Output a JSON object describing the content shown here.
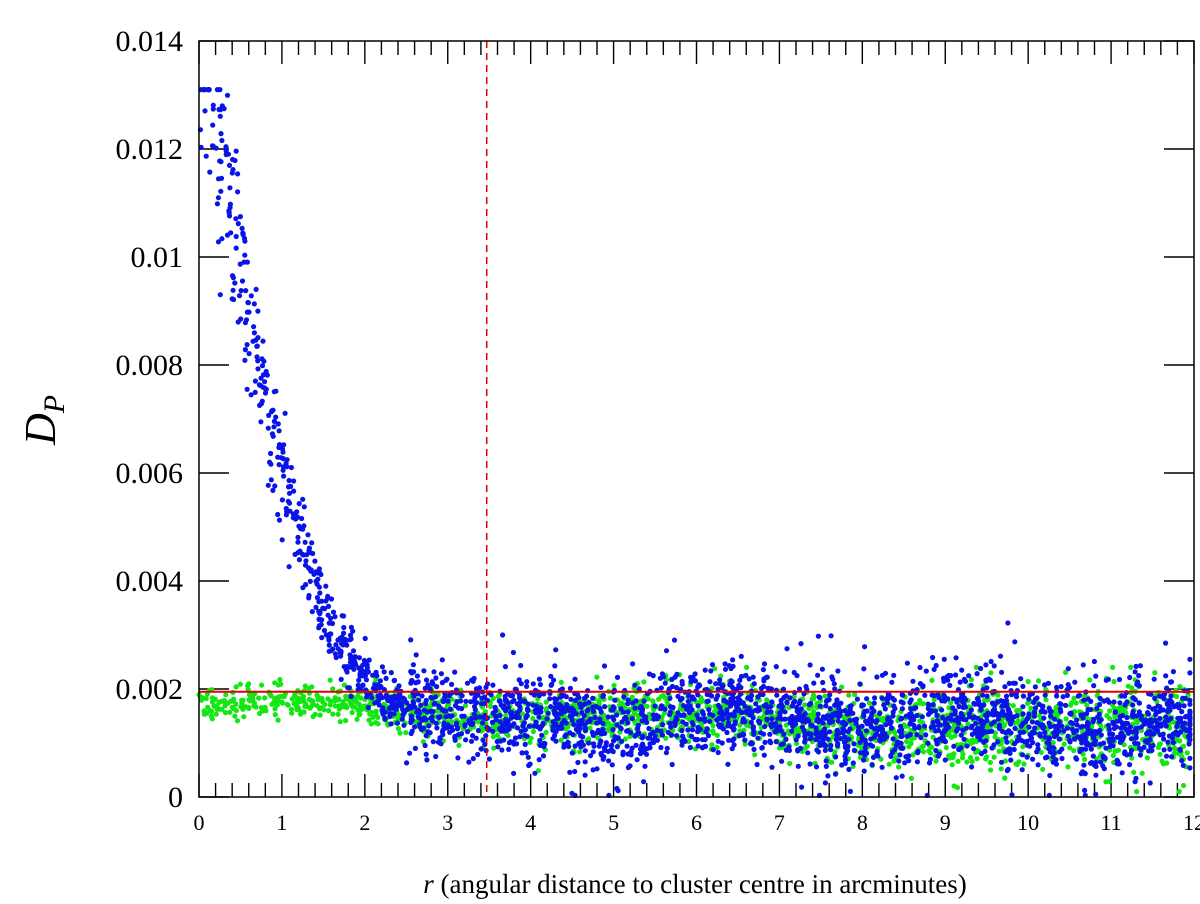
{
  "chart_data": {
    "type": "scatter",
    "title": "",
    "xlabel_var": "r",
    "xlabel_rest": " (angular distance to cluster centre in arcminutes)",
    "ylabel_main": "D",
    "ylabel_sub": "P",
    "xlim": [
      0,
      12
    ],
    "ylim": [
      0,
      0.014
    ],
    "xticks": [
      "0",
      "1",
      "2",
      "3",
      "4",
      "5",
      "6",
      "7",
      "8",
      "9",
      "10",
      "11",
      "12"
    ],
    "yticks": [
      {
        "value": 0,
        "label": "0"
      },
      {
        "value": 0.002,
        "label": "0.002"
      },
      {
        "value": 0.004,
        "label": "0.004"
      },
      {
        "value": 0.006,
        "label": "0.006"
      },
      {
        "value": 0.008,
        "label": "0.008"
      },
      {
        "value": 0.01,
        "label": "0.01"
      },
      {
        "value": 0.012,
        "label": "0.012"
      },
      {
        "value": 0.014,
        "label": "0.014"
      }
    ],
    "grid": false,
    "legend": "none",
    "series": [
      {
        "color": "#0a14e6",
        "profile": "decaying: ~0.0128 at r=0, falling to ~0.0022 by r~3.5, then ~0.0012 ± 0.0007 out to r=12 with upward fluctuations to ~0.003",
        "approx_points": 2600,
        "x_range": [
          0,
          12
        ]
      },
      {
        "color": "#14e614",
        "profile": "flat: ~0.0017 at r=0 declining slowly to ~0.0012 near r=12, scatter ± 0.0005",
        "approx_points": 1800,
        "x_range": [
          0,
          12
        ]
      }
    ],
    "annotations": [
      {
        "type": "hline",
        "y": 0.00195,
        "color": "#e00000",
        "style": "solid"
      },
      {
        "type": "vline",
        "x": 3.47,
        "color": "#e00000",
        "style": "dashed"
      }
    ]
  }
}
